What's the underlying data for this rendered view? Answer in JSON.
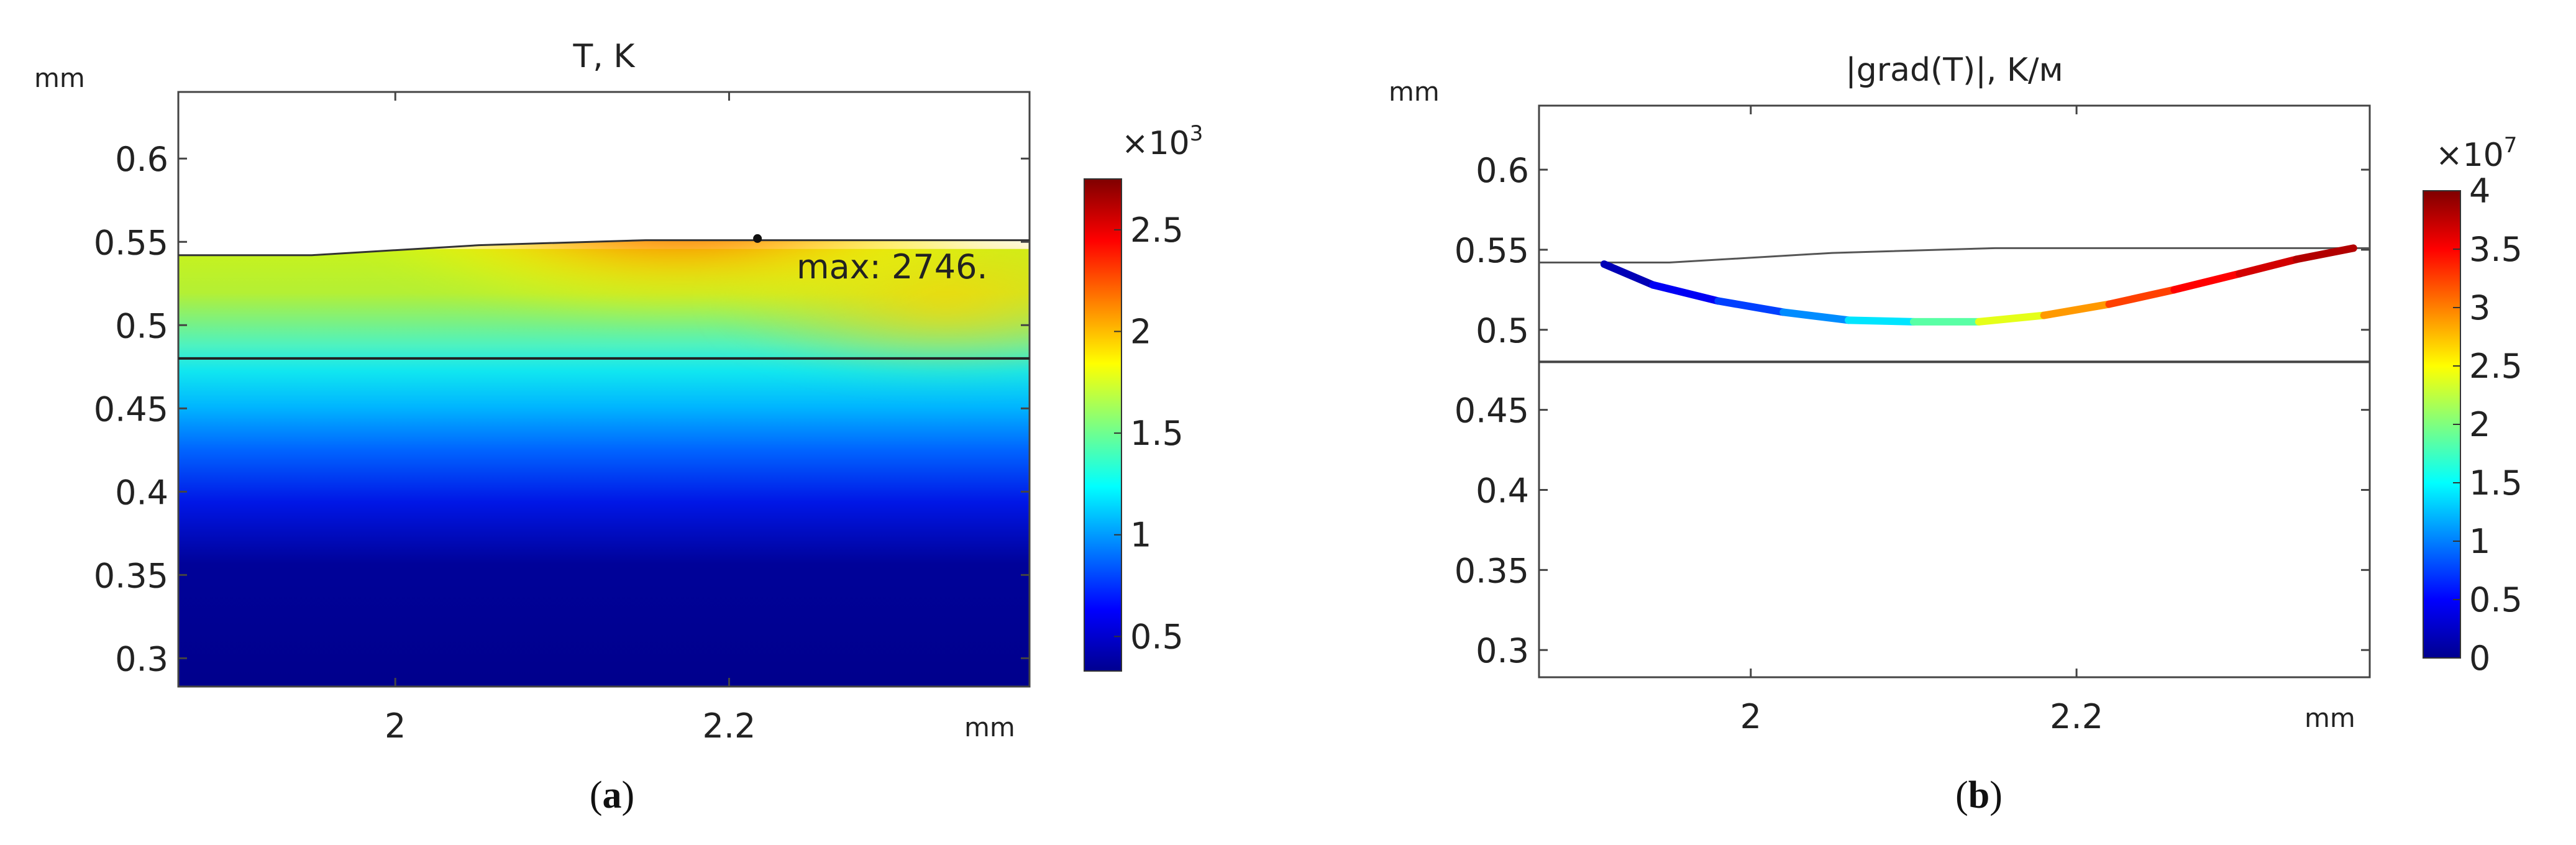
{
  "chart_data": [
    {
      "type": "heatmap",
      "title": "T, K",
      "x_unit": "mm",
      "y_unit": "mm",
      "xlim": [
        1.87,
        2.38
      ],
      "ylim": [
        0.283,
        0.64
      ],
      "x_ticks": [
        {
          "value": 2,
          "label": "2"
        },
        {
          "value": 2.2,
          "label": "2.2"
        }
      ],
      "y_ticks": [
        {
          "value": 0.6,
          "label": "0.6"
        },
        {
          "value": 0.55,
          "label": "0.55"
        },
        {
          "value": 0.5,
          "label": "0.5"
        },
        {
          "value": 0.45,
          "label": "0.45"
        },
        {
          "value": 0.4,
          "label": "0.4"
        },
        {
          "value": 0.35,
          "label": "0.35"
        },
        {
          "value": 0.3,
          "label": "0.3"
        }
      ],
      "surface_line": [
        [
          1.87,
          0.542
        ],
        [
          1.95,
          0.542
        ],
        [
          2.05,
          0.548
        ],
        [
          2.15,
          0.551
        ],
        [
          2.25,
          0.551
        ],
        [
          2.38,
          0.551
        ]
      ],
      "interface_line": [
        [
          1.87,
          0.48
        ],
        [
          2.38,
          0.48
        ]
      ],
      "peak": {
        "x": 2.17,
        "y": 0.548,
        "value": 2746
      },
      "max_marker": {
        "x": 2.217,
        "y": 0.552
      },
      "annotation": "max: 2746.",
      "colorbar": {
        "multiplier": "×10",
        "exponent": "3",
        "range": [
          0.33,
          2.75
        ],
        "ticks": [
          {
            "value": 2.5,
            "label": "2.5"
          },
          {
            "value": 2,
            "label": "2"
          },
          {
            "value": 1.5,
            "label": "1.5"
          },
          {
            "value": 1,
            "label": "1"
          },
          {
            "value": 0.5,
            "label": "0.5"
          }
        ]
      },
      "caption": {
        "open": "(",
        "letter": "a",
        "close": ")"
      }
    },
    {
      "type": "line",
      "title": "|grad(T)|, K/м",
      "x_unit": "mm",
      "y_unit": "mm",
      "xlim": [
        1.87,
        2.38
      ],
      "ylim": [
        0.283,
        0.64
      ],
      "x_ticks": [
        {
          "value": 2,
          "label": "2"
        },
        {
          "value": 2.2,
          "label": "2.2"
        }
      ],
      "y_ticks": [
        {
          "value": 0.6,
          "label": "0.6"
        },
        {
          "value": 0.55,
          "label": "0.55"
        },
        {
          "value": 0.5,
          "label": "0.5"
        },
        {
          "value": 0.45,
          "label": "0.45"
        },
        {
          "value": 0.4,
          "label": "0.4"
        },
        {
          "value": 0.35,
          "label": "0.35"
        },
        {
          "value": 0.3,
          "label": "0.3"
        }
      ],
      "surface_line": [
        [
          1.87,
          0.542
        ],
        [
          1.95,
          0.542
        ],
        [
          2.05,
          0.548
        ],
        [
          2.15,
          0.551
        ],
        [
          2.25,
          0.551
        ],
        [
          2.38,
          0.551
        ]
      ],
      "interface_line": [
        [
          1.87,
          0.48
        ],
        [
          2.38,
          0.48
        ]
      ],
      "melt_boundary": [
        {
          "x": 1.91,
          "y": 0.541,
          "value": 0.05
        },
        {
          "x": 1.94,
          "y": 0.528,
          "value": 0.3
        },
        {
          "x": 1.98,
          "y": 0.518,
          "value": 0.6
        },
        {
          "x": 2.02,
          "y": 0.511,
          "value": 0.9
        },
        {
          "x": 2.06,
          "y": 0.506,
          "value": 1.2
        },
        {
          "x": 2.1,
          "y": 0.505,
          "value": 1.6
        },
        {
          "x": 2.14,
          "y": 0.505,
          "value": 2.1
        },
        {
          "x": 2.18,
          "y": 0.509,
          "value": 2.7
        },
        {
          "x": 2.22,
          "y": 0.516,
          "value": 3.1
        },
        {
          "x": 2.26,
          "y": 0.525,
          "value": 3.4
        },
        {
          "x": 2.3,
          "y": 0.535,
          "value": 3.6
        },
        {
          "x": 2.335,
          "y": 0.544,
          "value": 3.75
        },
        {
          "x": 2.37,
          "y": 0.551,
          "value": 3.85
        }
      ],
      "colorbar": {
        "multiplier": "×10",
        "exponent": "7",
        "range": [
          0,
          4
        ],
        "ticks": [
          {
            "value": 4,
            "label": "4"
          },
          {
            "value": 3.5,
            "label": "3.5"
          },
          {
            "value": 3,
            "label": "3"
          },
          {
            "value": 2.5,
            "label": "2.5"
          },
          {
            "value": 2,
            "label": "2"
          },
          {
            "value": 1.5,
            "label": "1.5"
          },
          {
            "value": 1,
            "label": "1"
          },
          {
            "value": 0.5,
            "label": "0.5"
          },
          {
            "value": 0,
            "label": "0"
          }
        ]
      },
      "caption": {
        "open": "(",
        "letter": "b",
        "close": ")"
      }
    }
  ]
}
